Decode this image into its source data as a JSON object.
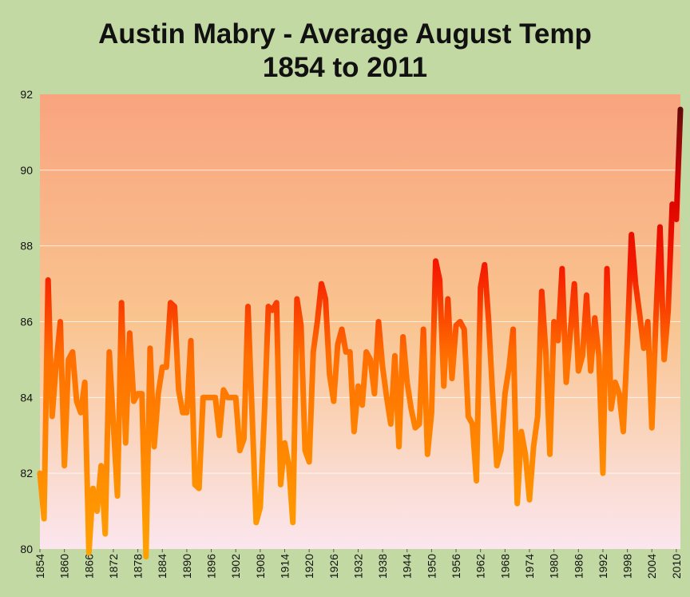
{
  "chart_data": {
    "type": "line",
    "title": [
      "Austin Mabry - Average August Temp",
      "1854 to 2011"
    ],
    "xlabel": "",
    "ylabel": "",
    "xlim": [
      1854,
      2011
    ],
    "ylim": [
      80,
      92
    ],
    "yticks": [
      "80",
      "82",
      "84",
      "86",
      "88",
      "90",
      "92"
    ],
    "xticks": [
      "1854",
      "1860",
      "1866",
      "1872",
      "1878",
      "1884",
      "1890",
      "1896",
      "1902",
      "1908",
      "1914",
      "1920",
      "1926",
      "1932",
      "1938",
      "1944",
      "1950",
      "1956",
      "1962",
      "1968",
      "1974",
      "1980",
      "1986",
      "1992",
      "1998",
      "2004",
      "2010"
    ],
    "grid": true,
    "legend": "none",
    "colors": {
      "background": "#c3d9a3",
      "plot_top": "#f9a47f",
      "plot_mid": "#f9c48f",
      "plot_bottom": "#fbe6ee",
      "line_low": "#ff8c00",
      "line_mid": "#ff4a00",
      "line_high": "#e00000",
      "line_peak": "#5a0a0a"
    },
    "x": [
      1854,
      1855,
      1856,
      1857,
      1858,
      1859,
      1860,
      1861,
      1862,
      1863,
      1864,
      1865,
      1866,
      1867,
      1868,
      1869,
      1870,
      1871,
      1872,
      1873,
      1874,
      1875,
      1876,
      1877,
      1878,
      1879,
      1880,
      1881,
      1882,
      1883,
      1884,
      1885,
      1886,
      1887,
      1888,
      1889,
      1890,
      1891,
      1892,
      1893,
      1894,
      1895,
      1896,
      1897,
      1898,
      1899,
      1900,
      1901,
      1902,
      1903,
      1904,
      1905,
      1906,
      1907,
      1908,
      1909,
      1910,
      1911,
      1912,
      1913,
      1914,
      1915,
      1916,
      1917,
      1918,
      1919,
      1920,
      1921,
      1922,
      1923,
      1924,
      1925,
      1926,
      1927,
      1928,
      1929,
      1930,
      1931,
      1932,
      1933,
      1934,
      1935,
      1936,
      1937,
      1938,
      1939,
      1940,
      1941,
      1942,
      1943,
      1944,
      1945,
      1946,
      1947,
      1948,
      1949,
      1950,
      1951,
      1952,
      1953,
      1954,
      1955,
      1956,
      1957,
      1958,
      1959,
      1960,
      1961,
      1962,
      1963,
      1964,
      1965,
      1966,
      1967,
      1968,
      1969,
      1970,
      1971,
      1972,
      1973,
      1974,
      1975,
      1976,
      1977,
      1978,
      1979,
      1980,
      1981,
      1982,
      1983,
      1984,
      1985,
      1986,
      1987,
      1988,
      1989,
      1990,
      1991,
      1992,
      1993,
      1994,
      1995,
      1996,
      1997,
      1998,
      1999,
      2000,
      2001,
      2002,
      2003,
      2004,
      2005,
      2006,
      2007,
      2008,
      2009,
      2010,
      2011
    ],
    "values": [
      82.0,
      80.8,
      87.1,
      83.5,
      84.9,
      86.0,
      82.2,
      85.0,
      85.2,
      83.9,
      83.6,
      84.4,
      79.9,
      81.6,
      81.0,
      82.2,
      80.4,
      85.2,
      83.3,
      81.4,
      86.5,
      82.8,
      85.7,
      83.9,
      84.1,
      84.1,
      79.8,
      85.3,
      82.7,
      84.1,
      84.8,
      84.8,
      86.5,
      86.4,
      84.2,
      83.6,
      83.6,
      85.5,
      81.7,
      81.6,
      84.0,
      84.0,
      84.0,
      84.0,
      83.0,
      84.2,
      84.0,
      84.0,
      84.0,
      82.6,
      82.9,
      86.4,
      83.6,
      80.7,
      81.1,
      83.5,
      86.4,
      86.3,
      86.5,
      81.7,
      82.8,
      82.2,
      80.7,
      86.6,
      85.9,
      82.6,
      82.3,
      85.2,
      86.0,
      87.0,
      86.6,
      84.6,
      83.9,
      85.4,
      85.8,
      85.2,
      85.2,
      83.1,
      84.3,
      83.8,
      85.2,
      85.0,
      84.1,
      86.0,
      84.8,
      84.0,
      83.3,
      85.1,
      82.7,
      85.6,
      84.4,
      83.7,
      83.2,
      83.3,
      85.8,
      82.5,
      83.6,
      87.6,
      87.1,
      84.3,
      86.6,
      84.5,
      85.9,
      86.0,
      85.8,
      83.5,
      83.3,
      81.8,
      86.9,
      87.5,
      86.0,
      84.0,
      82.2,
      82.6,
      84.1,
      84.8,
      85.8,
      81.2,
      83.1,
      82.5,
      81.3,
      82.7,
      83.5,
      86.8,
      85.2,
      82.5,
      86.0,
      85.5,
      87.4,
      84.4,
      85.7,
      87.0,
      84.7,
      85.1,
      86.7,
      84.7,
      86.1,
      85.1,
      82.0,
      87.4,
      83.7,
      84.4,
      84.1,
      83.1,
      85.5,
      88.3,
      87.0,
      86.2,
      85.3,
      86.0,
      83.2,
      86.1,
      88.5,
      85.0,
      86.3,
      89.1,
      88.7,
      91.6
    ]
  }
}
